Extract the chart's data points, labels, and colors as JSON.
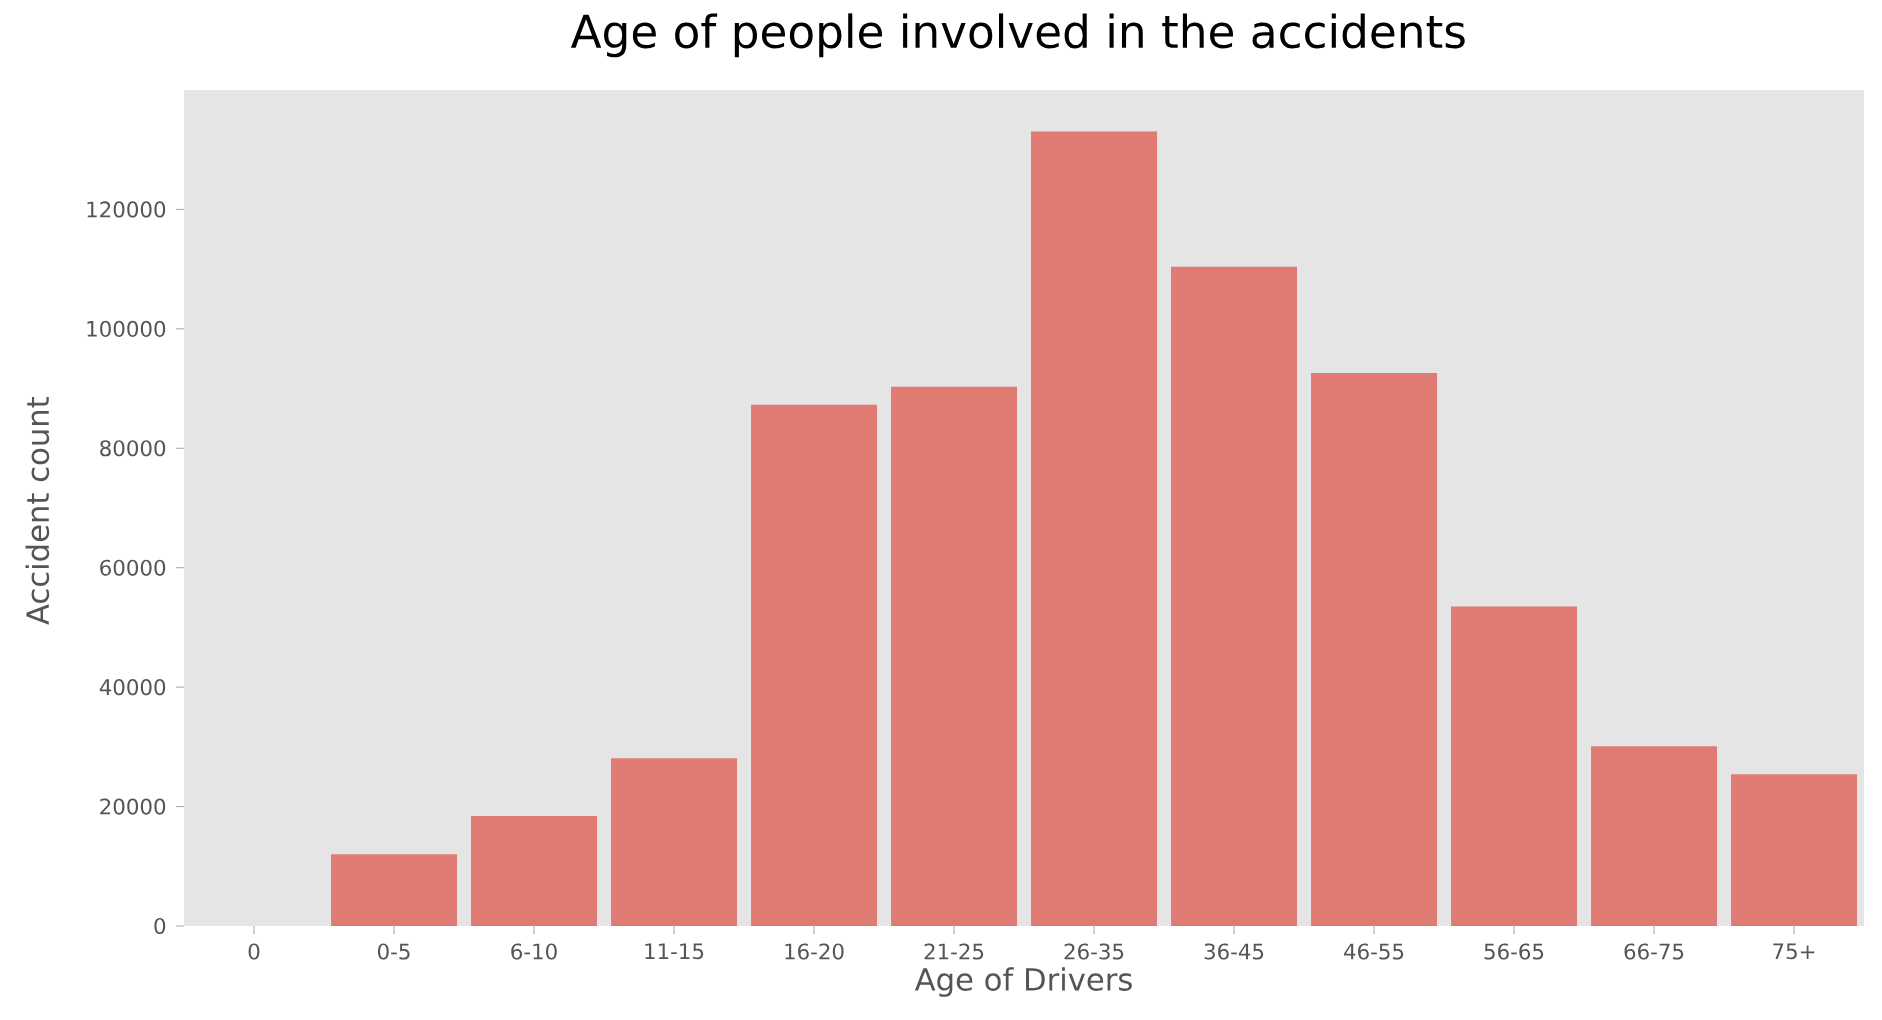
{
  "chart_data": {
    "type": "bar",
    "title": "Age of people involved in the accidents",
    "xlabel": "Age of Drivers",
    "ylabel": "Accident count",
    "categories": [
      "0",
      "0-5",
      "6-10",
      "11-15",
      "16-20",
      "21-25",
      "26-35",
      "36-45",
      "46-55",
      "56-65",
      "66-75",
      "75+"
    ],
    "values": [
      null,
      12000,
      18400,
      28100,
      87300,
      90300,
      133100,
      110400,
      92600,
      53500,
      30100,
      25400
    ],
    "color": "#e07b73",
    "ylim": [
      0,
      140000
    ],
    "yticks": [
      0,
      20000,
      40000,
      60000,
      80000,
      100000,
      120000
    ],
    "grid": false
  }
}
